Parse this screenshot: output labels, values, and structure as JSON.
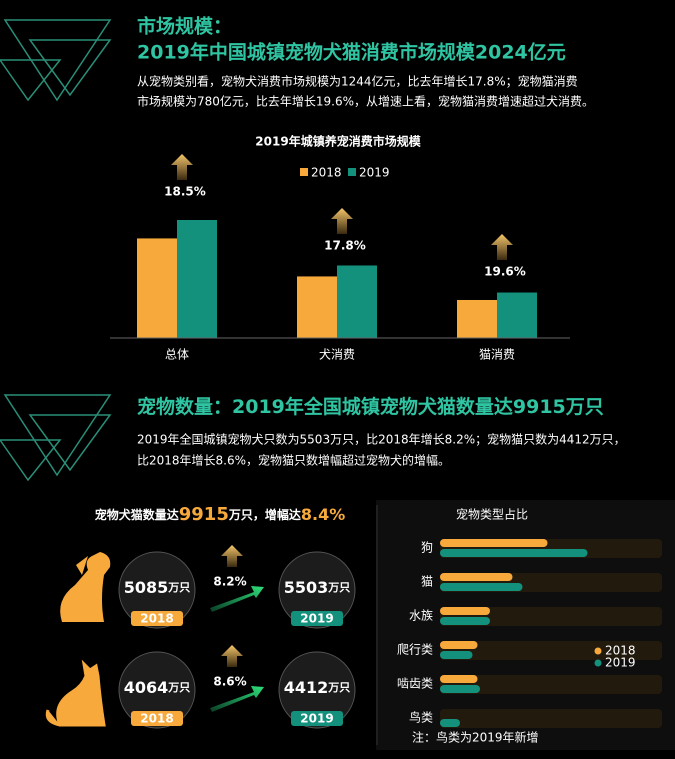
{
  "section1": {
    "label": "市场规模：",
    "headline": "2019年中国城镇宠物犬猫消费市场规模2024亿元",
    "paragraph": [
      "从宠物类别看，宠物犬消费市场规模为1244亿元，比去年增长17.8%；宠物猫消费",
      "市场规模为780亿元，比去年增长19.6%，从增速上看，宠物猫消费增速超过犬消费。"
    ],
    "chart_data": {
      "type": "bar",
      "title": "2019年城镇养宠消费市场规模",
      "categories": [
        "总体",
        "犬消费",
        "猫消费"
      ],
      "series": [
        {
          "name": "2018",
          "color": "#f7a93c",
          "values": [
            1708,
            1056,
            652
          ]
        },
        {
          "name": "2019",
          "color": "#13917d",
          "values": [
            2024,
            1244,
            780
          ]
        }
      ],
      "growth_labels": [
        "18.5%",
        "17.8%",
        "19.6%"
      ]
    }
  },
  "section2": {
    "label": "宠物数量：",
    "headline": "2019年全国城镇宠物犬猫数量达9915万只",
    "paragraph": [
      "2019年全国城镇宠物犬只数为5503万只，比2018年增长8.2%；宠物猫只数为4412万只，",
      "比2018年增长8.6%，宠物猫只数增幅超过宠物犬的增幅。"
    ],
    "summary": [
      "宠物犬猫数量达",
      "9915",
      "万只，增幅达",
      "8.4%"
    ],
    "unit": "万只",
    "years": [
      "2018",
      "2019"
    ],
    "rows": [
      {
        "values": [
          5085,
          5503
        ],
        "growth": "8.2%"
      },
      {
        "values": [
          4064,
          4412
        ],
        "growth": "8.6%"
      }
    ],
    "chart_data": {
      "type": "hbar",
      "title": "宠物类型占比",
      "categories": [
        "狗",
        "猫",
        "水族",
        "爬行类",
        "啮齿类",
        "鸟类"
      ],
      "series": [
        {
          "name": "2018",
          "color": "#f7a93c",
          "values": [
            43,
            29,
            20,
            15,
            15,
            null
          ]
        },
        {
          "name": "2019",
          "color": "#13917d",
          "values": [
            59,
            33,
            20,
            13,
            16,
            8
          ]
        }
      ],
      "note": "注：鸟类为2019年新增"
    }
  }
}
